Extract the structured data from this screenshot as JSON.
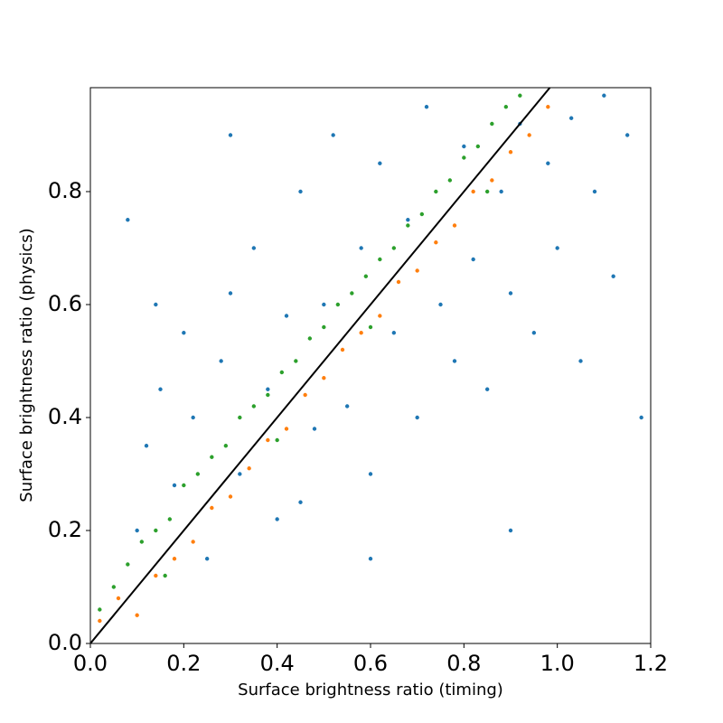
{
  "chart_data": {
    "type": "scatter",
    "xlabel": "Surface brightness ratio (timing)",
    "ylabel": "Surface brightness ratio (physics)",
    "xlim": [
      0,
      1.2
    ],
    "ylim": [
      0,
      0.984
    ],
    "xticks": [
      {
        "value": 0,
        "label": "0.0"
      },
      0.2,
      0.4,
      0.6,
      0.8,
      {
        "value": 1,
        "label": "1.0"
      },
      1.2
    ],
    "yticks": [
      {
        "value": 0,
        "label": "0.0"
      },
      0.2,
      0.4,
      0.6,
      0.8
    ],
    "series": [
      {
        "color": "#1f77b4",
        "x": [
          0.12,
          0.15,
          0.18,
          0.2,
          0.22,
          0.25,
          0.28,
          0.3,
          0.32,
          0.35,
          0.38,
          0.4,
          0.42,
          0.45,
          0.48,
          0.5,
          0.52,
          0.55,
          0.58,
          0.6,
          0.62,
          0.65,
          0.68,
          0.7,
          0.72,
          0.75,
          0.78,
          0.8,
          0.82,
          0.85,
          0.88,
          0.9,
          0.92,
          0.95,
          0.98,
          1.0,
          1.03,
          1.05,
          1.08,
          1.1,
          1.12,
          1.15,
          1.18,
          0.08,
          0.1,
          0.3,
          0.6,
          0.9,
          0.14,
          0.45
        ],
        "y": [
          0.35,
          0.45,
          0.28,
          0.55,
          0.4,
          0.15,
          0.5,
          0.62,
          0.3,
          0.7,
          0.45,
          0.22,
          0.58,
          0.8,
          0.38,
          0.6,
          0.9,
          0.42,
          0.7,
          0.3,
          0.85,
          0.55,
          0.75,
          0.4,
          0.95,
          0.6,
          0.5,
          0.88,
          0.68,
          0.45,
          0.8,
          0.62,
          0.92,
          0.55,
          0.85,
          0.7,
          0.93,
          0.5,
          0.8,
          0.97,
          0.65,
          0.9,
          0.4,
          0.75,
          0.2,
          0.9,
          0.15,
          0.2,
          0.6,
          0.25
        ]
      },
      {
        "color": "#ff7f0e",
        "x": [
          0.02,
          0.06,
          0.1,
          0.14,
          0.18,
          0.22,
          0.26,
          0.3,
          0.34,
          0.38,
          0.42,
          0.46,
          0.5,
          0.54,
          0.58,
          0.62,
          0.66,
          0.7,
          0.74,
          0.78,
          0.82,
          0.86,
          0.9,
          0.94,
          0.98
        ],
        "y": [
          0.04,
          0.08,
          0.05,
          0.12,
          0.15,
          0.18,
          0.24,
          0.26,
          0.31,
          0.36,
          0.38,
          0.44,
          0.47,
          0.52,
          0.55,
          0.58,
          0.64,
          0.66,
          0.71,
          0.74,
          0.8,
          0.82,
          0.87,
          0.9,
          0.95
        ]
      },
      {
        "color": "#2ca02c",
        "x": [
          0.02,
          0.05,
          0.08,
          0.11,
          0.14,
          0.17,
          0.2,
          0.23,
          0.26,
          0.29,
          0.32,
          0.35,
          0.38,
          0.41,
          0.44,
          0.47,
          0.5,
          0.53,
          0.56,
          0.59,
          0.62,
          0.65,
          0.68,
          0.71,
          0.74,
          0.77,
          0.8,
          0.83,
          0.86,
          0.89,
          0.92,
          0.16,
          0.4,
          0.6,
          0.85
        ],
        "y": [
          0.06,
          0.1,
          0.14,
          0.18,
          0.2,
          0.22,
          0.28,
          0.3,
          0.33,
          0.35,
          0.4,
          0.42,
          0.44,
          0.48,
          0.5,
          0.54,
          0.56,
          0.6,
          0.62,
          0.65,
          0.68,
          0.7,
          0.74,
          0.76,
          0.8,
          0.82,
          0.86,
          0.88,
          0.92,
          0.95,
          0.97,
          0.12,
          0.36,
          0.56,
          0.8
        ]
      },
      {
        "type": "line",
        "color": "#000000",
        "x": [
          0,
          0.984
        ],
        "y": [
          0,
          0.984
        ]
      }
    ]
  }
}
